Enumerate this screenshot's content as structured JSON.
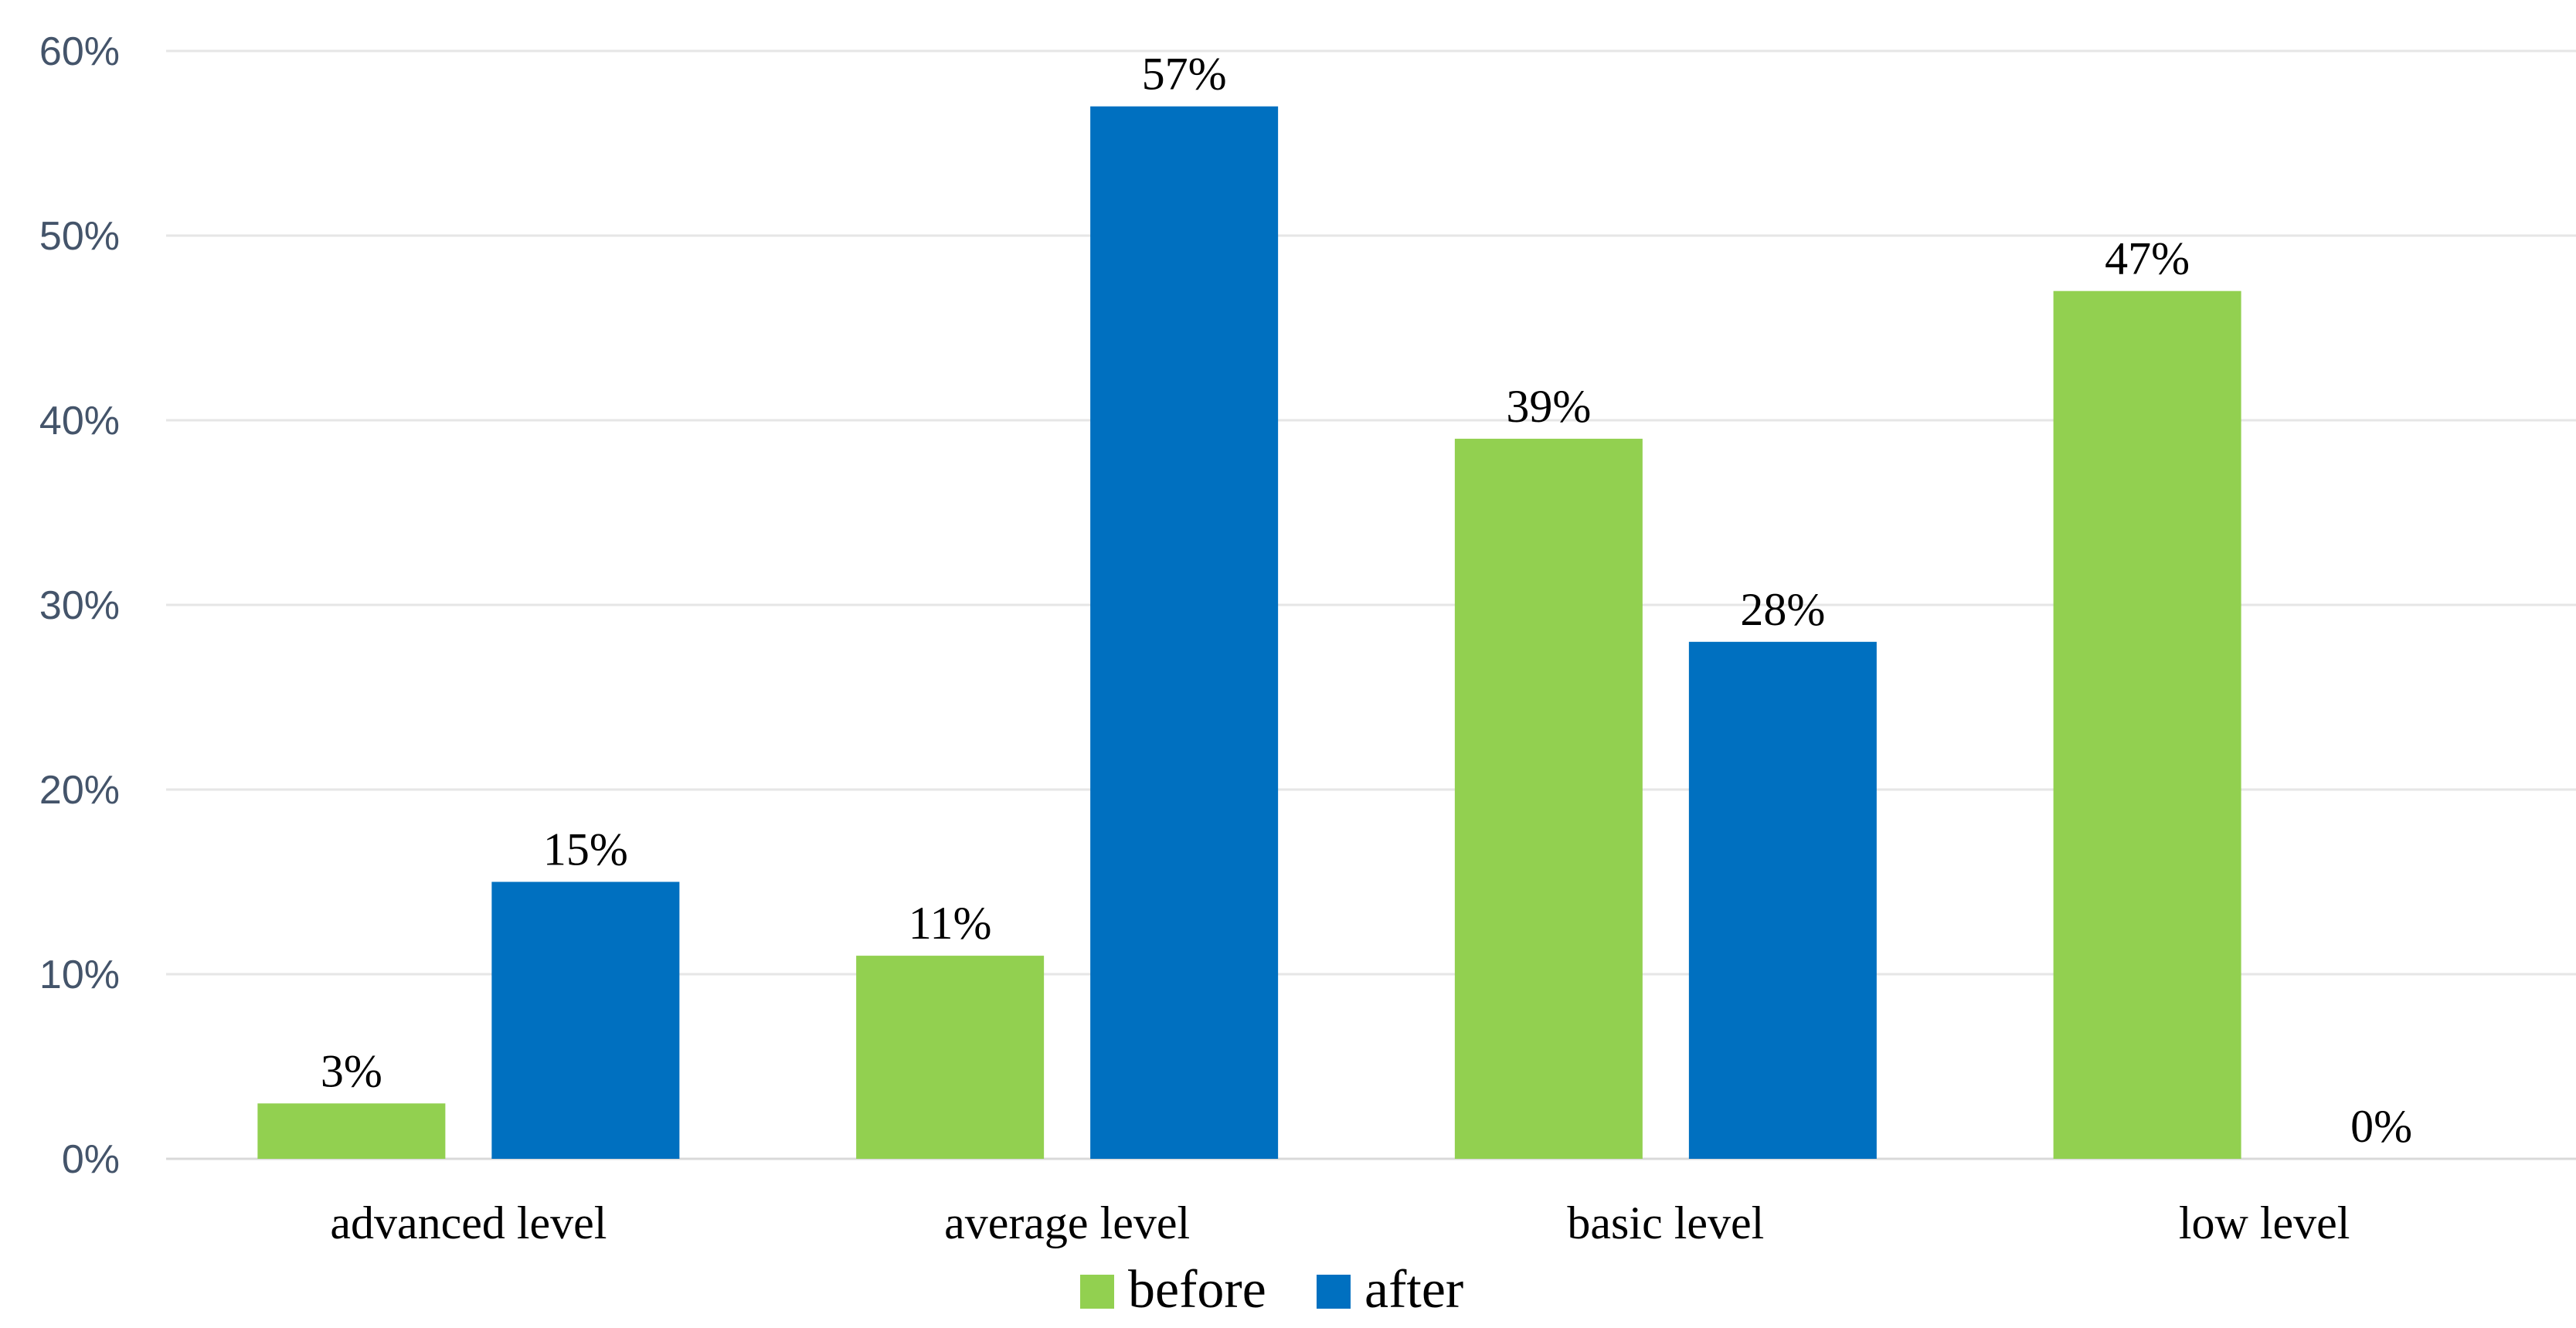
{
  "chart_data": {
    "type": "bar",
    "categories": [
      "advanced level",
      "average level",
      "basic level",
      "low level"
    ],
    "series": [
      {
        "name": "before",
        "color": "#92d050",
        "values": [
          3,
          11,
          39,
          47
        ],
        "labels": [
          "3%",
          "11%",
          "39%",
          "47%"
        ]
      },
      {
        "name": "after",
        "color": "#0070c0",
        "values": [
          15,
          57,
          28,
          0
        ],
        "labels": [
          "15%",
          "57%",
          "28%",
          "0%"
        ]
      }
    ],
    "ylim": [
      0,
      60
    ],
    "yticks": [
      0,
      10,
      20,
      30,
      40,
      50,
      60
    ],
    "ytick_labels": [
      "0%",
      "10%",
      "20%",
      "30%",
      "40%",
      "50%",
      "60%"
    ],
    "grid": true,
    "legend_position": "bottom",
    "title": "",
    "xlabel": "",
    "ylabel": ""
  }
}
